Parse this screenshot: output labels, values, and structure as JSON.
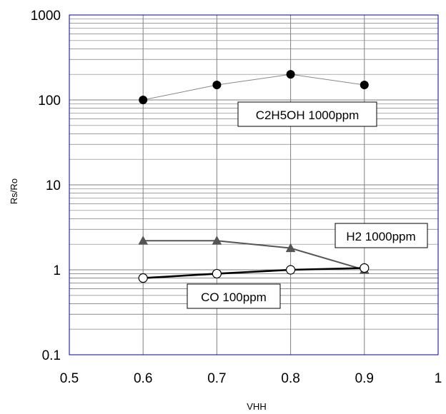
{
  "chart_data": {
    "type": "scatter",
    "title": "",
    "xlabel": "VHH",
    "ylabel": "Rs/Ro",
    "xlim": [
      0.5,
      1
    ],
    "ylim": [
      0.1,
      1000
    ],
    "yscale": "log",
    "grid": true,
    "x_ticks": [
      "0.5",
      "0.6",
      "0.7",
      "0.8",
      "0.9",
      "1"
    ],
    "y_ticks": [
      "0.1",
      "1",
      "10",
      "100",
      "1000"
    ],
    "series": [
      {
        "name": "C2H5OH 1000ppm",
        "marker": "filled-circle",
        "line_color": "#888888",
        "x": [
          0.6,
          0.7,
          0.8,
          0.9
        ],
        "y": [
          100,
          150,
          200,
          150
        ]
      },
      {
        "name": "H2 1000ppm",
        "marker": "triangle",
        "line_color": "#555555",
        "x": [
          0.6,
          0.7,
          0.8,
          0.9
        ],
        "y": [
          2.2,
          2.2,
          1.8,
          1.0
        ]
      },
      {
        "name": "CO 100ppm",
        "marker": "open-circle",
        "line_color": "#000000",
        "x": [
          0.6,
          0.7,
          0.8,
          0.9
        ],
        "y": [
          0.8,
          0.9,
          1.0,
          1.05
        ]
      }
    ],
    "annotations": [
      {
        "text": "C2H5OH 1000ppm"
      },
      {
        "text": "H2 1000ppm"
      },
      {
        "text": "CO 100ppm"
      }
    ],
    "colors": {
      "plot_border": "#0000a0",
      "grid": "#808080",
      "background": "#ffffff"
    }
  }
}
